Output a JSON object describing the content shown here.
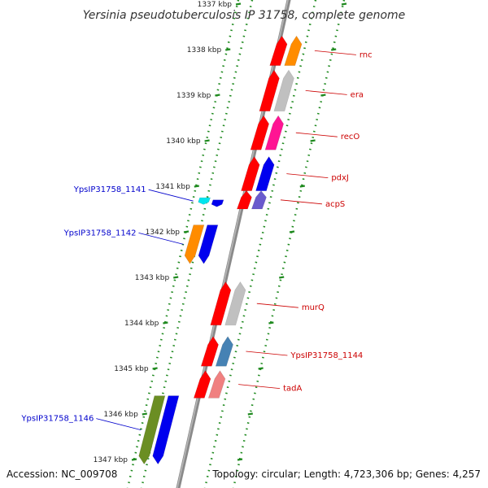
{
  "title": "Yersinia pseudotuberculosis IP 31758, complete genome",
  "footer": {
    "accession": "Accession: NC_009708",
    "topology": "Topology: circular; Length: 4,723,306 bp; Genes: 4,257"
  },
  "colors": {
    "backbone": "#8a8a8a",
    "dots": "#1f8a1f",
    "forward_label": "#0000cc",
    "reverse_label": "#cc0000"
  },
  "ticks": [
    {
      "label": "1337 kbp",
      "kbp": 1337
    },
    {
      "label": "1338 kbp",
      "kbp": 1338
    },
    {
      "label": "1339 kbp",
      "kbp": 1339
    },
    {
      "label": "1340 kbp",
      "kbp": 1340
    },
    {
      "label": "1341 kbp",
      "kbp": 1341
    },
    {
      "label": "1342 kbp",
      "kbp": 1342
    },
    {
      "label": "1343 kbp",
      "kbp": 1343
    },
    {
      "label": "1344 kbp",
      "kbp": 1344
    },
    {
      "label": "1345 kbp",
      "kbp": 1345
    },
    {
      "label": "1346 kbp",
      "kbp": 1346
    },
    {
      "label": "1347 kbp",
      "kbp": 1347
    }
  ],
  "forward_genes": [
    {
      "name": "YpsIP31758_1141",
      "start_kbp": 1341.25,
      "end_kbp": 1341.4,
      "inner_color": "#00e5ee",
      "outer_color": "#0000ee",
      "outer_start_kbp": 1341.3,
      "outer_end_kbp": 1341.45
    },
    {
      "name": "YpsIP31758_1142",
      "start_kbp": 1341.85,
      "end_kbp": 1342.7,
      "inner_color": "#ff8c00",
      "outer_color": "#0000ee",
      "outer_start_kbp": 1341.85,
      "outer_end_kbp": 1342.7
    },
    {
      "name": "YpsIP31758_1146",
      "start_kbp": 1345.6,
      "end_kbp": 1347.1,
      "inner_color": "#6b8e23",
      "outer_color": "#0000ee",
      "outer_start_kbp": 1345.6,
      "outer_end_kbp": 1347.1
    }
  ],
  "reverse_genes": [
    {
      "name": "rnc",
      "start_kbp": 1337.7,
      "end_kbp": 1338.35,
      "outer_color": "#ff8c00"
    },
    {
      "name": "era",
      "start_kbp": 1338.45,
      "end_kbp": 1339.35,
      "outer_color": "#c0c0c0"
    },
    {
      "name": "recO",
      "start_kbp": 1339.45,
      "end_kbp": 1340.2,
      "outer_color": "#ff1493"
    },
    {
      "name": "pdxJ",
      "start_kbp": 1340.35,
      "end_kbp": 1341.1,
      "outer_color": "#0000ee"
    },
    {
      "name": "acpS",
      "start_kbp": 1341.1,
      "end_kbp": 1341.5,
      "outer_color": "#6a5acd"
    },
    {
      "name": "murQ",
      "start_kbp": 1343.1,
      "end_kbp": 1344.05,
      "outer_color": "#c0c0c0"
    },
    {
      "name": "YpsIP31758_1144",
      "start_kbp": 1344.3,
      "end_kbp": 1344.95,
      "outer_color": "#4682b4"
    },
    {
      "name": "tadA",
      "start_kbp": 1345.05,
      "end_kbp": 1345.65,
      "outer_color": "#f08080"
    }
  ]
}
